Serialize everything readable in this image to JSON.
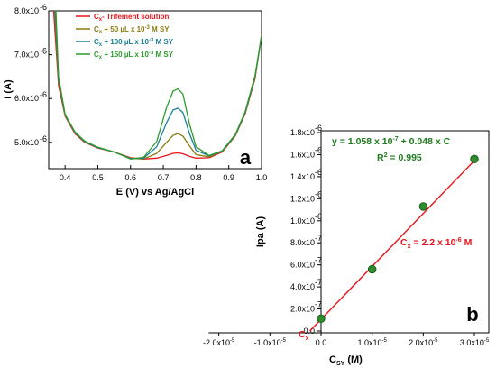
{
  "chart_data": [
    {
      "type": "line",
      "panel_label": "a",
      "xlabel": "E (V) vs Ag/AgCl",
      "ylabel": "I (A)",
      "xlim": [
        0.35,
        1.0
      ],
      "ylim": [
        4.4e-06,
        8e-06
      ],
      "x_ticks": [
        "0.4",
        "0.5",
        "0.6",
        "0.7",
        "0.8",
        "0.9",
        "1.0"
      ],
      "x_tick_values": [
        0.4,
        0.5,
        0.6,
        0.7,
        0.8,
        0.9,
        1.0
      ],
      "y_tick_labels": [
        "5.0x10",
        "6.0x10",
        "7.0x10",
        "8.0x10"
      ],
      "y_tick_exponent": "-6",
      "y_tick_values": [
        5e-06,
        6e-06,
        7e-06,
        8e-06
      ],
      "legend_placement": "top-right",
      "series": [
        {
          "name_main": "C",
          "name_sub": "x",
          "name_rest": "- Trifement solution",
          "color": "#e8141c",
          "peak": 4.76e-06,
          "x": [
            0.365,
            0.38,
            0.4,
            0.43,
            0.46,
            0.5,
            0.55,
            0.6,
            0.64,
            0.68,
            0.71,
            0.73,
            0.745,
            0.76,
            0.78,
            0.8,
            0.84,
            0.88,
            0.92,
            0.95,
            0.98,
            1.0
          ],
          "y": [
            8e-06,
            6.3e-06,
            5.6e-06,
            5.2e-06,
            5e-06,
            4.87e-06,
            4.78e-06,
            4.65e-06,
            4.62e-06,
            4.64e-06,
            4.7e-06,
            4.75e-06,
            4.76e-06,
            4.74e-06,
            4.68e-06,
            4.64e-06,
            4.65e-06,
            4.78e-06,
            5.15e-06,
            5.65e-06,
            6.45e-06,
            7.45e-06
          ]
        },
        {
          "name_main": "C",
          "name_sub": "x",
          "name_rest": " + 50 µL x 10",
          "name_sup": "-3",
          "name_tail": " M  SY",
          "color": "#8a7a10",
          "peak": 5.2e-06,
          "x": [
            0.368,
            0.38,
            0.4,
            0.43,
            0.46,
            0.5,
            0.55,
            0.6,
            0.64,
            0.68,
            0.71,
            0.73,
            0.745,
            0.76,
            0.78,
            0.8,
            0.84,
            0.88,
            0.92,
            0.95,
            0.98,
            1.0
          ],
          "y": [
            8e-06,
            6.4e-06,
            5.62e-06,
            5.22e-06,
            5.01e-06,
            4.88e-06,
            4.78e-06,
            4.64e-06,
            4.62e-06,
            4.75e-06,
            5e-06,
            5.16e-06,
            5.2e-06,
            5.14e-06,
            4.92e-06,
            4.72e-06,
            4.67e-06,
            4.79e-06,
            5.16e-06,
            5.67e-06,
            6.48e-06,
            7.45e-06
          ]
        },
        {
          "name_main": "C",
          "name_sub": "x",
          "name_rest": " + 100 µL x 10",
          "name_sup": "-3",
          "name_tail": " M  SY",
          "color": "#1a7f9a",
          "peak": 5.78e-06,
          "x": [
            0.37,
            0.38,
            0.4,
            0.43,
            0.46,
            0.5,
            0.55,
            0.6,
            0.64,
            0.68,
            0.71,
            0.73,
            0.745,
            0.76,
            0.78,
            0.8,
            0.84,
            0.88,
            0.92,
            0.95,
            0.98,
            1.0
          ],
          "y": [
            8e-06,
            6.45e-06,
            5.63e-06,
            5.23e-06,
            5.02e-06,
            4.88e-06,
            4.78e-06,
            4.63e-06,
            4.64e-06,
            4.9e-06,
            5.45e-06,
            5.74e-06,
            5.78e-06,
            5.68e-06,
            5.2e-06,
            4.82e-06,
            4.69e-06,
            4.8e-06,
            5.17e-06,
            5.68e-06,
            6.5e-06,
            7.42e-06
          ]
        },
        {
          "name_main": "C",
          "name_sub": "x",
          "name_rest": " + 150 µL x 10",
          "name_sup": "-3",
          "name_tail": " M  SY",
          "color": "#2e9a2e",
          "peak": 6.22e-06,
          "x": [
            0.372,
            0.38,
            0.4,
            0.43,
            0.46,
            0.5,
            0.55,
            0.6,
            0.64,
            0.68,
            0.71,
            0.73,
            0.745,
            0.76,
            0.78,
            0.8,
            0.84,
            0.88,
            0.92,
            0.95,
            0.98,
            1.0
          ],
          "y": [
            8e-06,
            6.5e-06,
            5.64e-06,
            5.24e-06,
            5.03e-06,
            4.89e-06,
            4.78e-06,
            4.62e-06,
            4.66e-06,
            5.02e-06,
            5.8e-06,
            6.17e-06,
            6.22e-06,
            6.1e-06,
            5.42e-06,
            4.9e-06,
            4.7e-06,
            4.81e-06,
            5.18e-06,
            5.7e-06,
            6.52e-06,
            7.4e-06
          ]
        }
      ]
    },
    {
      "type": "scatter",
      "panel_label": "b",
      "xlabel_main": "C",
      "xlabel_sub": "SY",
      "xlabel_rest": "  (M)",
      "ylabel": "Ipa (A)",
      "xlim": [
        -2.2e-05,
        3.2e-05
      ],
      "ylim": [
        -0.0,
        1.8e-06
      ],
      "x_tick_labels": [
        "-2.0x10",
        "-1.0x10",
        "0.0",
        "1.0x10",
        "2.0x10",
        "3.0x10"
      ],
      "x_tick_sups": [
        "-5",
        "-5",
        "",
        "-5",
        "-5",
        "-5"
      ],
      "x_tick_values": [
        -2e-05,
        -1e-05,
        0.0,
        1e-05,
        2e-05,
        3e-05
      ],
      "y_tick_labels": [
        "0.0",
        "2.0x10",
        "4.0x10",
        "6.0x10",
        "8.0x10",
        "1.0x10",
        "1.2x10",
        "1.4x10",
        "1.6x10",
        "1.8x10"
      ],
      "y_tick_sups": [
        "",
        "-7",
        "-7",
        "-7",
        "-7",
        "-6",
        "-6",
        "-6",
        "-6",
        "-6"
      ],
      "y_tick_values": [
        0.0,
        2e-07,
        4e-07,
        6e-07,
        8e-07,
        1e-06,
        1.2e-06,
        1.4e-06,
        1.6e-06,
        1.8e-06
      ],
      "points": {
        "x": [
          0.0,
          1e-05,
          2e-05,
          3e-05
        ],
        "y": [
          1.12e-07,
          5.6e-07,
          1.13e-06,
          1.56e-06
        ]
      },
      "fit": {
        "intercept": 1.058e-07,
        "slope": 0.048,
        "x_start": -2.2e-06,
        "x_end": 3.05e-05
      },
      "equation": {
        "prefix": "y = 1.058 x 10",
        "sup": "-7",
        "suffix": " + 0.048 x C",
        "r2_main": "R",
        "r2_sup": "2",
        "r2_rest": " = 0.995"
      },
      "cx_label": {
        "main": "C",
        "sub": "x",
        "rest": " = 2.2 x 10",
        "sup": "-6",
        "tail": " M"
      },
      "cx_axis_label": {
        "main": "C",
        "sub": "x"
      },
      "colors": {
        "line": "#e8141c",
        "marker": "#2e8b2e",
        "text_eq": "#1d7a1d"
      }
    }
  ]
}
